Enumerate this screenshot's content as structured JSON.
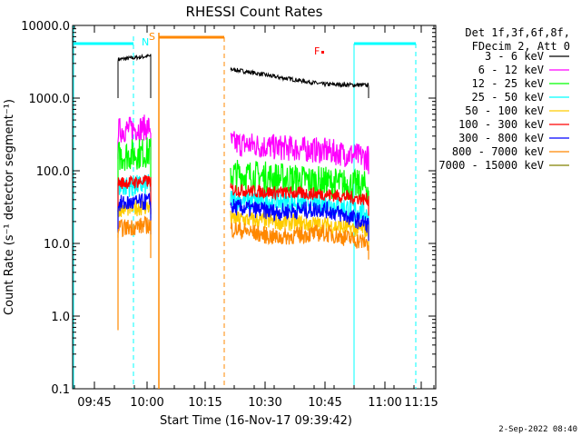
{
  "chart_data": {
    "type": "line",
    "title": "RHESSI Count Rates",
    "xlabel": "Start Time (16-Nov-17 09:39:42)",
    "ylabel": "Count Rate (s⁻¹ detector segment⁻¹)",
    "yscale": "log",
    "ylim": [
      0.1,
      10000
    ],
    "xlim_minutes_after_0939": [
      0,
      100
    ],
    "x_ticks": [
      "09:45",
      "10:00",
      "10:15",
      "10:30",
      "10:45",
      "11:00",
      "11:15"
    ],
    "y_ticks": [
      "0.1",
      "1.0",
      "10.0",
      "100.0",
      "1000.0",
      "10000.0"
    ],
    "grid": false,
    "legend_position": "top-right",
    "legend_header": [
      "Det 1f,3f,6f,8f,",
      "FDecim 2, Att 0"
    ],
    "series": [
      {
        "name": "3 - 6 keV",
        "color": "#000000",
        "seg1": [
          3400,
          3600,
          3800
        ],
        "seg2": [
          2500,
          1950,
          1550,
          1500
        ]
      },
      {
        "name": "6 - 12 keV",
        "color": "#ff00ff",
        "seg1": [
          360,
          380,
          400
        ],
        "seg2": [
          240,
          210,
          190,
          150
        ]
      },
      {
        "name": "12 - 25 keV",
        "color": "#00ff00",
        "seg1": [
          160,
          170,
          180
        ],
        "seg2": [
          90,
          80,
          70,
          60
        ]
      },
      {
        "name": "25 - 50 keV",
        "color": "#00ffff",
        "seg1": [
          60,
          62,
          64
        ],
        "seg2": [
          40,
          38,
          36,
          26
        ]
      },
      {
        "name": "50 - 100 keV",
        "color": "#ffcc00",
        "seg1": [
          30,
          31,
          32
        ],
        "seg2": [
          22,
          20,
          18,
          15
        ]
      },
      {
        "name": "100 - 300 keV",
        "color": "#ff0000",
        "seg1": [
          68,
          70,
          72
        ],
        "seg2": [
          55,
          50,
          48,
          40
        ]
      },
      {
        "name": "300 - 800 keV",
        "color": "#0000ff",
        "seg1": [
          35,
          36,
          38
        ],
        "seg2": [
          32,
          27,
          30,
          18
        ]
      },
      {
        "name": "800 - 7000 keV",
        "color": "#ff8800",
        "seg1": [
          16,
          17,
          18
        ],
        "seg2": [
          16,
          12,
          14,
          10
        ]
      },
      {
        "name": "7000 - 15000 keV",
        "color": "#808000",
        "seg1": [],
        "seg2": []
      }
    ],
    "annotations": [
      {
        "text": "N",
        "color": "#00ffff"
      },
      {
        "text": "S",
        "color": "#ff8800"
      },
      {
        "text": "F",
        "color": "#ff0000"
      }
    ],
    "timestamp": "2-Sep-2022 08:40"
  }
}
